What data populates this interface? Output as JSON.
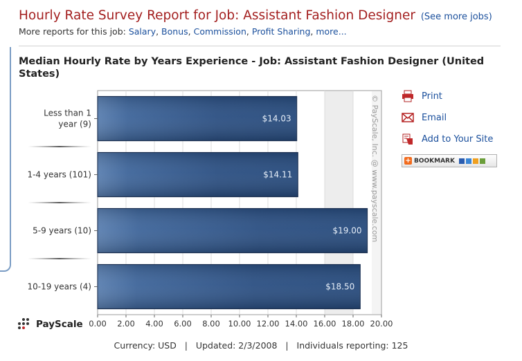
{
  "header": {
    "title": "Hourly Rate Survey Report for Job: Assistant Fashion Designer",
    "see_more": "(See more jobs)",
    "more_reports_label": "More reports for this job:",
    "more_reports_links": [
      "Salary",
      "Bonus",
      "Commission",
      "Profit Sharing",
      "more..."
    ]
  },
  "chart_title": "Median Hourly Rate by Years Experience - Job: Assistant Fashion Designer (United States)",
  "chart_data": {
    "type": "bar",
    "orientation": "horizontal",
    "categories": [
      "Less than 1 year (9)",
      "1-4 years (101)",
      "5-9 years (10)",
      "10-19 years (4)"
    ],
    "category_lines": [
      [
        "Less than 1",
        "year (9)"
      ],
      [
        "1-4 years (101)"
      ],
      [
        "5-9 years (10)"
      ],
      [
        "10-19 years (4)"
      ]
    ],
    "values": [
      14.03,
      14.11,
      19.0,
      18.5
    ],
    "value_labels": [
      "$14.03",
      "$14.11",
      "$19.00",
      "$18.50"
    ],
    "xlim": [
      0,
      20
    ],
    "x_ticks": [
      "0.00",
      "2.00",
      "4.00",
      "6.00",
      "8.00",
      "10.00",
      "12.00",
      "14.00",
      "16.00",
      "18.00",
      "20.00"
    ],
    "watermark": "© PayScale, Inc. @ www.payscale.com",
    "grid": true,
    "bar_color": "#2f5588"
  },
  "side_links": [
    {
      "label": "Print",
      "icon": "printer-icon"
    },
    {
      "label": "Email",
      "icon": "email-icon"
    },
    {
      "label": "Add to Your Site",
      "icon": "add-to-site-icon"
    }
  ],
  "bookmark_label": "BOOKMARK",
  "logo_text": "PayScale",
  "footer": {
    "currency": "Currency: USD",
    "updated": "Updated: 2/3/2008",
    "reporting": "Individuals reporting: 125"
  },
  "colors": {
    "title_red": "#a31f1f",
    "link_blue": "#1a4f9c",
    "frame_blue": "#7a9cc4"
  }
}
